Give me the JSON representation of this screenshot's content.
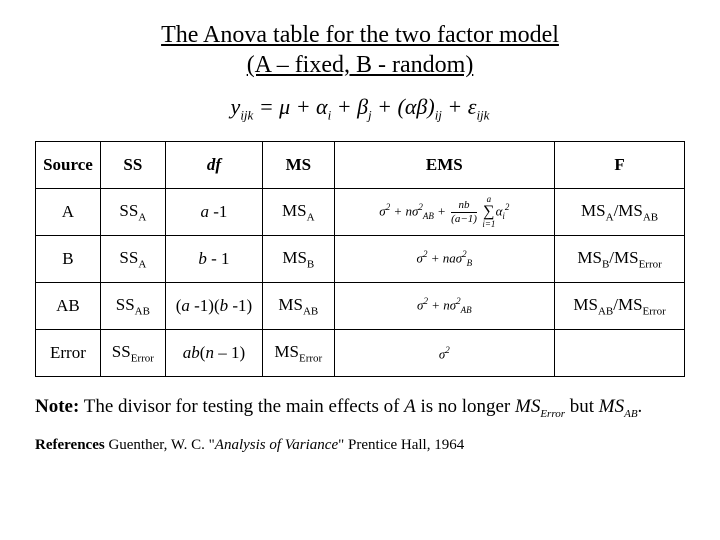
{
  "title_line1": "The Anova table for the two factor model",
  "title_line2": "(A – fixed, B - random)",
  "table": {
    "headers": {
      "c1": "Source",
      "c2": "SS",
      "c3": "df",
      "c4": "MS",
      "c5": "EMS",
      "c6": "F"
    },
    "rows": {
      "r1": {
        "source": "A",
        "ss_base": "SS",
        "ss_sub": "A",
        "df": "a -1",
        "ms_base": "MS",
        "ms_sub": "A",
        "f": "MS",
        "f_sub1": "A",
        "f_mid": "/MS",
        "f_sub2": "AB"
      },
      "r2": {
        "source": "B",
        "ss_base": "SS",
        "ss_sub": "A",
        "df": "b - 1",
        "ms_base": "MS",
        "ms_sub": "B",
        "f": "MS",
        "f_sub1": "B",
        "f_mid": "/MS",
        "f_sub2": "Error"
      },
      "r3": {
        "source": "AB",
        "ss_base": "SS",
        "ss_sub": "AB",
        "df": "(a -1)(b -1)",
        "ms_base": "MS",
        "ms_sub": "AB",
        "f": "MS",
        "f_sub1": "AB",
        "f_mid": "/MS",
        "f_sub2": "Error"
      },
      "r4": {
        "source": "Error",
        "ss_base": "SS",
        "ss_sub": "Error",
        "df": "ab(n – 1)",
        "ms_base": "MS",
        "ms_sub": "Error"
      }
    }
  },
  "note_a": "Note:",
  "note_b": " The divisor for testing the main effects of ",
  "note_c": "A",
  "note_d": " is no longer ",
  "note_e": "MS",
  "note_e_sub": "Error",
  "note_f": " but ",
  "note_g": "MS",
  "note_g_sub": "AB",
  "note_h": ".",
  "refs_a": "References",
  "refs_b": " Guenther, W. C. \"",
  "refs_c": "Analysis of Variance",
  "refs_d": "\" Prentice Hall, 1964",
  "style": {
    "background": "#ffffff",
    "text_color": "#000000",
    "border_color": "#000000",
    "title_fontsize": 24,
    "equation_fontsize": 22,
    "th_fontsize": 17,
    "td_fontsize": 17,
    "note_fontsize": 19,
    "refs_fontsize": 15,
    "font_family": "Times New Roman",
    "columns_pct": {
      "source": 10,
      "ss": 10,
      "df": 15,
      "ms": 11,
      "ems": 34,
      "f": 20
    }
  }
}
